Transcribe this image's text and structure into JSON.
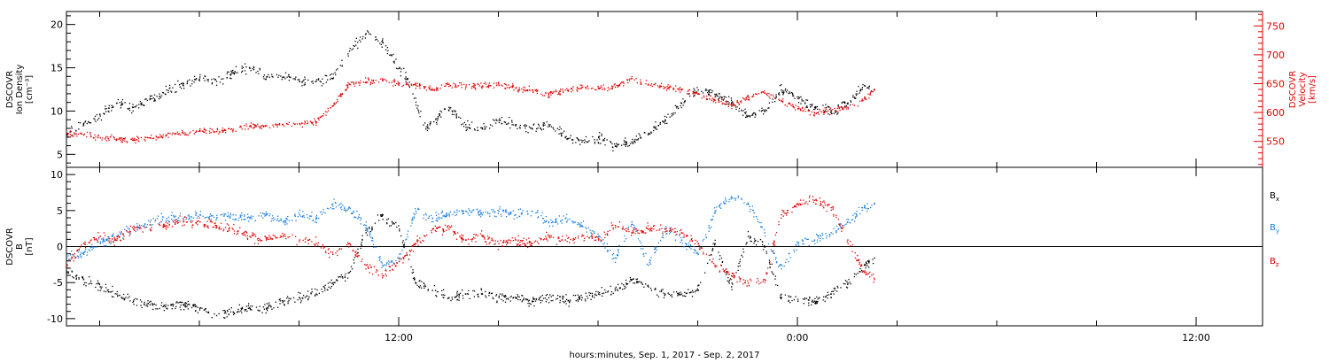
{
  "colors": {
    "black": "#000000",
    "red": "#e00000",
    "blue": "#1a7fe0"
  },
  "xlabel": "hours:minutes, Sep.  1, 2017 - Sep.  2, 2017",
  "x_tick_labels": [
    {
      "hour": 12,
      "label": "12:00"
    },
    {
      "hour": 24,
      "label": "0:00"
    },
    {
      "hour": 36,
      "label": "12:00"
    }
  ],
  "chart_data": [
    {
      "type": "scatter",
      "panel": "top",
      "x_range_hours": [
        2,
        38
      ],
      "left_axis": {
        "label_lines": [
          "DSCOVR",
          "Ion Density",
          "[cm⁻³]"
        ],
        "ylim": [
          3.5,
          21.5
        ],
        "ticks": [
          5,
          10,
          15,
          20
        ],
        "color": "#000000"
      },
      "right_axis": {
        "label_lines": [
          "DSCOVR",
          "Velocity",
          "[km/s]"
        ],
        "ylim": [
          505,
          775
        ],
        "ticks": [
          550,
          600,
          650,
          700,
          750
        ],
        "color": "#e00000"
      },
      "series": [
        {
          "axis": "left",
          "color": "#000000",
          "points": [
            [
              2.0,
              7.5
            ],
            [
              2.5,
              8.5
            ],
            [
              3.0,
              9.5
            ],
            [
              3.5,
              11.0
            ],
            [
              4.0,
              10.5
            ],
            [
              4.5,
              11.5
            ],
            [
              5.0,
              12.5
            ],
            [
              5.5,
              13.0
            ],
            [
              6.0,
              14.0
            ],
            [
              6.5,
              13.5
            ],
            [
              7.0,
              14.5
            ],
            [
              7.5,
              15.0
            ],
            [
              8.0,
              14.0
            ],
            [
              8.5,
              14.0
            ],
            [
              9.0,
              13.5
            ],
            [
              9.5,
              13.5
            ],
            [
              10.0,
              13.8
            ],
            [
              10.5,
              17.0
            ],
            [
              11.0,
              19.0
            ],
            [
              11.5,
              18.0
            ],
            [
              12.0,
              15.0
            ],
            [
              12.2,
              14.0
            ],
            [
              12.8,
              8.0
            ],
            [
              13.5,
              10.5
            ],
            [
              14.0,
              8.5
            ],
            [
              14.5,
              8.0
            ],
            [
              15.0,
              9.0
            ],
            [
              15.5,
              8.5
            ],
            [
              16.0,
              8.0
            ],
            [
              16.5,
              8.5
            ],
            [
              17.0,
              7.0
            ],
            [
              17.5,
              6.5
            ],
            [
              18.0,
              7.0
            ],
            [
              18.5,
              6.0
            ],
            [
              19.0,
              6.5
            ],
            [
              19.5,
              7.5
            ],
            [
              20.0,
              9.0
            ],
            [
              20.5,
              11.0
            ],
            [
              21.0,
              12.5
            ],
            [
              21.5,
              12.0
            ],
            [
              22.0,
              11.0
            ],
            [
              22.5,
              9.5
            ],
            [
              23.0,
              10.0
            ],
            [
              23.5,
              12.5
            ],
            [
              24.0,
              11.5
            ],
            [
              24.5,
              10.5
            ],
            [
              25.0,
              10.0
            ],
            [
              25.5,
              11.0
            ],
            [
              26.0,
              13.0
            ],
            [
              26.3,
              12.5
            ]
          ]
        },
        {
          "axis": "right",
          "color": "#e00000",
          "points": [
            [
              2.0,
              565
            ],
            [
              2.5,
              562
            ],
            [
              3.0,
              557
            ],
            [
              3.5,
              555
            ],
            [
              4.0,
              553
            ],
            [
              4.5,
              557
            ],
            [
              5.0,
              562
            ],
            [
              5.5,
              565
            ],
            [
              6.0,
              570
            ],
            [
              6.5,
              568
            ],
            [
              7.0,
              572
            ],
            [
              7.5,
              577
            ],
            [
              8.0,
              578
            ],
            [
              8.5,
              580
            ],
            [
              9.0,
              582
            ],
            [
              9.5,
              583
            ],
            [
              10.0,
              612
            ],
            [
              10.5,
              650
            ],
            [
              11.0,
              654
            ],
            [
              11.5,
              657
            ],
            [
              12.0,
              652
            ],
            [
              12.5,
              648
            ],
            [
              13.0,
              640
            ],
            [
              13.5,
              650
            ],
            [
              14.0,
              645
            ],
            [
              14.5,
              647
            ],
            [
              15.0,
              648
            ],
            [
              15.5,
              643
            ],
            [
              16.0,
              640
            ],
            [
              16.5,
              633
            ],
            [
              17.0,
              640
            ],
            [
              17.5,
              645
            ],
            [
              18.0,
              643
            ],
            [
              18.5,
              645
            ],
            [
              19.0,
              660
            ],
            [
              19.5,
              650
            ],
            [
              20.0,
              645
            ],
            [
              20.5,
              640
            ],
            [
              21.0,
              633
            ],
            [
              21.5,
              622
            ],
            [
              22.0,
              612
            ],
            [
              22.5,
              628
            ],
            [
              23.0,
              635
            ],
            [
              23.5,
              622
            ],
            [
              24.0,
              608
            ],
            [
              24.5,
              600
            ],
            [
              25.0,
              605
            ],
            [
              25.5,
              610
            ],
            [
              26.0,
              625
            ],
            [
              26.3,
              640
            ]
          ]
        }
      ]
    },
    {
      "type": "scatter",
      "panel": "bottom",
      "x_range_hours": [
        2,
        38
      ],
      "left_axis": {
        "label_lines": [
          "DSCOVR",
          "B",
          "[nT]"
        ],
        "ylim": [
          -11,
          11
        ],
        "ticks": [
          -10,
          -5,
          0,
          5,
          10
        ],
        "color": "#000000"
      },
      "zero_line": true,
      "series": [
        {
          "name": "Bx",
          "axis": "left",
          "color": "#000000",
          "points": [
            [
              2.0,
              -3.5
            ],
            [
              2.5,
              -4.5
            ],
            [
              3.0,
              -5.5
            ],
            [
              3.5,
              -6.5
            ],
            [
              4.0,
              -7.5
            ],
            [
              4.5,
              -8.0
            ],
            [
              5.0,
              -8.5
            ],
            [
              5.5,
              -8.0
            ],
            [
              6.0,
              -8.5
            ],
            [
              6.5,
              -9.5
            ],
            [
              7.0,
              -9.0
            ],
            [
              7.5,
              -8.5
            ],
            [
              8.0,
              -8.5
            ],
            [
              8.5,
              -7.5
            ],
            [
              9.0,
              -7.0
            ],
            [
              9.5,
              -6.5
            ],
            [
              10.0,
              -5.0
            ],
            [
              10.5,
              -3.5
            ],
            [
              11.0,
              2.0
            ],
            [
              11.5,
              4.5
            ],
            [
              12.0,
              2.5
            ],
            [
              12.5,
              -5.0
            ],
            [
              13.0,
              -6.0
            ],
            [
              13.5,
              -7.0
            ],
            [
              14.0,
              -6.5
            ],
            [
              14.5,
              -6.5
            ],
            [
              15.0,
              -7.0
            ],
            [
              15.5,
              -7.0
            ],
            [
              16.0,
              -7.5
            ],
            [
              16.5,
              -7.0
            ],
            [
              17.0,
              -7.5
            ],
            [
              17.5,
              -7.0
            ],
            [
              18.0,
              -6.5
            ],
            [
              18.5,
              -6.0
            ],
            [
              19.0,
              -4.5
            ],
            [
              19.5,
              -5.5
            ],
            [
              20.0,
              -6.5
            ],
            [
              20.5,
              -6.5
            ],
            [
              21.0,
              -6.0
            ],
            [
              21.5,
              0.5
            ],
            [
              22.0,
              -5.5
            ],
            [
              22.5,
              1.5
            ],
            [
              23.0,
              0.0
            ],
            [
              23.5,
              -7.0
            ],
            [
              24.0,
              -7.5
            ],
            [
              24.5,
              -7.5
            ],
            [
              25.0,
              -6.5
            ],
            [
              25.5,
              -5.0
            ],
            [
              26.0,
              -2.5
            ],
            [
              26.3,
              -1.5
            ]
          ]
        },
        {
          "name": "By",
          "axis": "left",
          "color": "#1a7fe0",
          "points": [
            [
              2.0,
              -1.5
            ],
            [
              2.5,
              -1.0
            ],
            [
              3.0,
              0.5
            ],
            [
              3.5,
              1.5
            ],
            [
              4.0,
              2.5
            ],
            [
              4.5,
              3.5
            ],
            [
              5.0,
              4.0
            ],
            [
              5.5,
              4.0
            ],
            [
              6.0,
              4.5
            ],
            [
              6.5,
              4.0
            ],
            [
              7.0,
              4.5
            ],
            [
              7.5,
              4.0
            ],
            [
              8.0,
              4.5
            ],
            [
              8.5,
              3.5
            ],
            [
              9.0,
              4.5
            ],
            [
              9.5,
              4.0
            ],
            [
              10.0,
              6.0
            ],
            [
              10.5,
              5.5
            ],
            [
              11.0,
              3.0
            ],
            [
              11.5,
              -2.5
            ],
            [
              12.0,
              -1.5
            ],
            [
              12.5,
              5.0
            ],
            [
              13.0,
              4.0
            ],
            [
              13.5,
              4.5
            ],
            [
              14.0,
              5.0
            ],
            [
              14.5,
              4.5
            ],
            [
              15.0,
              5.0
            ],
            [
              15.5,
              4.5
            ],
            [
              16.0,
              5.0
            ],
            [
              16.5,
              3.5
            ],
            [
              17.0,
              4.0
            ],
            [
              17.5,
              3.0
            ],
            [
              18.0,
              1.5
            ],
            [
              18.5,
              -1.5
            ],
            [
              19.0,
              3.5
            ],
            [
              19.5,
              -2.5
            ],
            [
              20.0,
              2.5
            ],
            [
              20.5,
              1.0
            ],
            [
              21.0,
              -1.0
            ],
            [
              21.5,
              5.0
            ],
            [
              22.0,
              7.0
            ],
            [
              22.5,
              6.0
            ],
            [
              23.0,
              2.0
            ],
            [
              23.5,
              -3.0
            ],
            [
              24.0,
              0.5
            ],
            [
              24.5,
              1.0
            ],
            [
              25.0,
              2.0
            ],
            [
              25.5,
              3.5
            ],
            [
              26.0,
              5.5
            ],
            [
              26.3,
              6.0
            ]
          ]
        },
        {
          "name": "Bz",
          "axis": "left",
          "color": "#e00000",
          "points": [
            [
              2.0,
              -2.5
            ],
            [
              2.5,
              0.5
            ],
            [
              3.0,
              1.5
            ],
            [
              3.5,
              1.0
            ],
            [
              4.0,
              2.5
            ],
            [
              4.5,
              2.5
            ],
            [
              5.0,
              3.0
            ],
            [
              5.5,
              3.5
            ],
            [
              6.0,
              3.5
            ],
            [
              6.5,
              3.0
            ],
            [
              7.0,
              2.5
            ],
            [
              7.5,
              1.5
            ],
            [
              8.0,
              1.0
            ],
            [
              8.5,
              1.5
            ],
            [
              9.0,
              1.0
            ],
            [
              9.5,
              0.5
            ],
            [
              10.0,
              -1.0
            ],
            [
              10.5,
              0.5
            ],
            [
              11.0,
              -2.5
            ],
            [
              11.5,
              -4.0
            ],
            [
              12.0,
              -2.0
            ],
            [
              12.5,
              0.5
            ],
            [
              13.0,
              2.5
            ],
            [
              13.5,
              2.5
            ],
            [
              14.0,
              1.0
            ],
            [
              14.5,
              1.5
            ],
            [
              15.0,
              0.5
            ],
            [
              15.5,
              1.0
            ],
            [
              16.0,
              0.5
            ],
            [
              16.5,
              1.5
            ],
            [
              17.0,
              1.0
            ],
            [
              17.5,
              1.5
            ],
            [
              18.0,
              1.0
            ],
            [
              18.5,
              3.0
            ],
            [
              19.0,
              2.0
            ],
            [
              19.5,
              2.5
            ],
            [
              20.0,
              2.5
            ],
            [
              20.5,
              2.0
            ],
            [
              21.0,
              0.5
            ],
            [
              21.5,
              -2.5
            ],
            [
              22.0,
              -4.0
            ],
            [
              22.5,
              -5.0
            ],
            [
              23.0,
              -4.5
            ],
            [
              23.5,
              4.5
            ],
            [
              24.0,
              6.0
            ],
            [
              24.5,
              6.5
            ],
            [
              25.0,
              5.5
            ],
            [
              25.5,
              1.0
            ],
            [
              26.0,
              -3.5
            ],
            [
              26.3,
              -4.5
            ]
          ]
        }
      ],
      "legend": [
        {
          "label": "B",
          "subscript": "x",
          "color": "#000000"
        },
        {
          "label": "B",
          "subscript": "y",
          "color": "#1a7fe0"
        },
        {
          "label": "B",
          "subscript": "z",
          "color": "#e00000"
        }
      ]
    }
  ]
}
